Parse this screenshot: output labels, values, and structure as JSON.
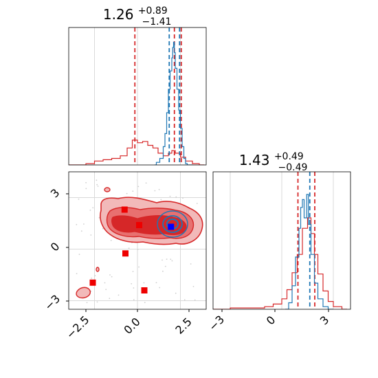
{
  "chart_data": [
    {
      "panel": "top-left",
      "type": "histogram",
      "title": {
        "median": "1.26",
        "plus": "+0.89",
        "minus": "−1.41"
      },
      "xlim": [
        -4.0,
        4.0
      ],
      "grid": true,
      "series": [
        {
          "color": "#d62728",
          "bins": [
            [
              -4.0,
              0.0
            ],
            [
              -3.0,
              0.01
            ],
            [
              -2.5,
              0.03
            ],
            [
              -2.0,
              0.04
            ],
            [
              -1.5,
              0.05
            ],
            [
              -1.0,
              0.07
            ],
            [
              -0.6,
              0.13
            ],
            [
              -0.3,
              0.19
            ],
            [
              0.0,
              0.17
            ],
            [
              0.3,
              0.18
            ],
            [
              0.6,
              0.15
            ],
            [
              0.9,
              0.13
            ],
            [
              1.2,
              0.09
            ],
            [
              1.5,
              0.07
            ],
            [
              1.8,
              0.09
            ],
            [
              2.0,
              0.11
            ],
            [
              2.2,
              0.09
            ],
            [
              2.5,
              0.06
            ],
            [
              2.8,
              0.03
            ],
            [
              3.2,
              0.01
            ],
            [
              3.6,
              0.0
            ]
          ],
          "quantiles": [
            -0.15,
            2.15,
            2.55
          ]
        },
        {
          "color": "#1f77b4",
          "bins": [
            [
              1.0,
              0.0
            ],
            [
              1.1,
              0.02
            ],
            [
              1.3,
              0.05
            ],
            [
              1.5,
              0.14
            ],
            [
              1.6,
              0.24
            ],
            [
              1.7,
              0.4
            ],
            [
              1.8,
              0.58
            ],
            [
              1.9,
              0.72
            ],
            [
              2.0,
              0.82
            ],
            [
              2.05,
              0.9
            ],
            [
              2.1,
              0.94
            ],
            [
              2.15,
              0.86
            ],
            [
              2.2,
              0.74
            ],
            [
              2.3,
              0.58
            ],
            [
              2.4,
              0.42
            ],
            [
              2.5,
              0.28
            ],
            [
              2.6,
              0.14
            ],
            [
              2.7,
              0.05
            ],
            [
              2.8,
              0.01
            ],
            [
              2.9,
              0.0
            ]
          ],
          "quantiles": [
            1.85,
            2.45
          ]
        }
      ]
    },
    {
      "panel": "bottom-left",
      "type": "2d-contour",
      "xlim": [
        -4.0,
        4.0
      ],
      "ylim": [
        -3.5,
        4.5
      ],
      "xticks": [
        "−2.5",
        "0.0",
        "2.5"
      ],
      "yticks": [
        "−3",
        "0",
        "3"
      ],
      "grid": true,
      "squares": [
        {
          "x": -0.75,
          "y": 2.3,
          "color": "#ee0000"
        },
        {
          "x": 0.1,
          "y": 1.4,
          "color": "#ee0000"
        },
        {
          "x": 1.95,
          "y": 1.3,
          "color": "#0000ff"
        },
        {
          "x": -0.7,
          "y": -0.25,
          "color": "#ee0000"
        },
        {
          "x": -2.6,
          "y": -1.95,
          "color": "#ee0000"
        },
        {
          "x": 0.4,
          "y": -2.4,
          "color": "#ee0000"
        }
      ]
    },
    {
      "panel": "bottom-right",
      "type": "histogram",
      "title": {
        "median": "1.43",
        "plus": "+0.49",
        "minus": "−0.49"
      },
      "xlim": [
        -4.0,
        4.0
      ],
      "xticks": [
        "−3",
        "0",
        "3"
      ],
      "grid": true,
      "series": [
        {
          "color": "#d62728",
          "bins": [
            [
              -4.0,
              0.0
            ],
            [
              -3.0,
              0.01
            ],
            [
              -2.0,
              0.01
            ],
            [
              -1.0,
              0.02
            ],
            [
              -0.5,
              0.04
            ],
            [
              0.0,
              0.08
            ],
            [
              0.3,
              0.15
            ],
            [
              0.6,
              0.28
            ],
            [
              0.9,
              0.42
            ],
            [
              1.2,
              0.62
            ],
            [
              1.5,
              0.7
            ],
            [
              1.7,
              0.58
            ],
            [
              1.9,
              0.42
            ],
            [
              2.1,
              0.27
            ],
            [
              2.4,
              0.14
            ],
            [
              2.7,
              0.06
            ],
            [
              3.0,
              0.02
            ],
            [
              3.5,
              0.0
            ]
          ],
          "quantiles": [
            0.94,
            1.92
          ]
        },
        {
          "color": "#1f77b4",
          "bins": [
            [
              0.2,
              0.0
            ],
            [
              0.4,
              0.05
            ],
            [
              0.6,
              0.18
            ],
            [
              0.8,
              0.4
            ],
            [
              1.0,
              0.62
            ],
            [
              1.1,
              0.78
            ],
            [
              1.2,
              0.84
            ],
            [
              1.3,
              0.7
            ],
            [
              1.45,
              0.88
            ],
            [
              1.55,
              0.65
            ],
            [
              1.7,
              0.42
            ],
            [
              1.9,
              0.2
            ],
            [
              2.1,
              0.08
            ],
            [
              2.4,
              0.02
            ],
            [
              2.7,
              0.0
            ]
          ],
          "quantiles": [
            1.63
          ]
        }
      ]
    }
  ]
}
